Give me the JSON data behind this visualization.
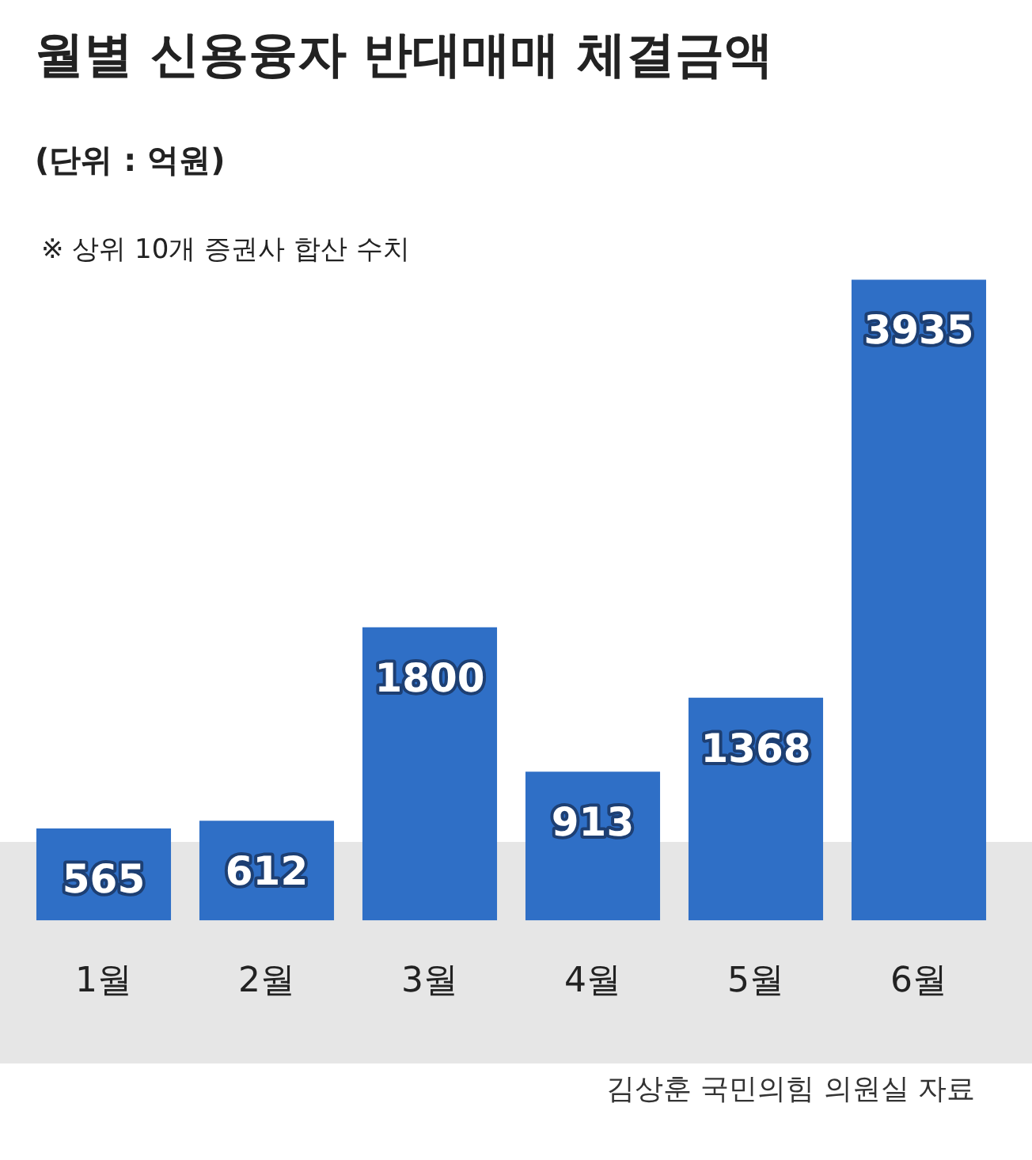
{
  "chart_data": {
    "type": "bar",
    "title": "월별 신용융자 반대매매 체결금액",
    "subtitle": "(단위 : 억원)",
    "annotations": [
      "※ 상위 10개 증권사 합산 수치",
      "김상훈 국민의힘 의원실 자료"
    ],
    "categories": [
      "1월",
      "2월",
      "3월",
      "4월",
      "5월",
      "6월"
    ],
    "values": [
      565,
      612,
      1800,
      913,
      1368,
      3935
    ],
    "color": "#2f6fc6",
    "data_labels": true,
    "grid": false,
    "legend": false
  }
}
